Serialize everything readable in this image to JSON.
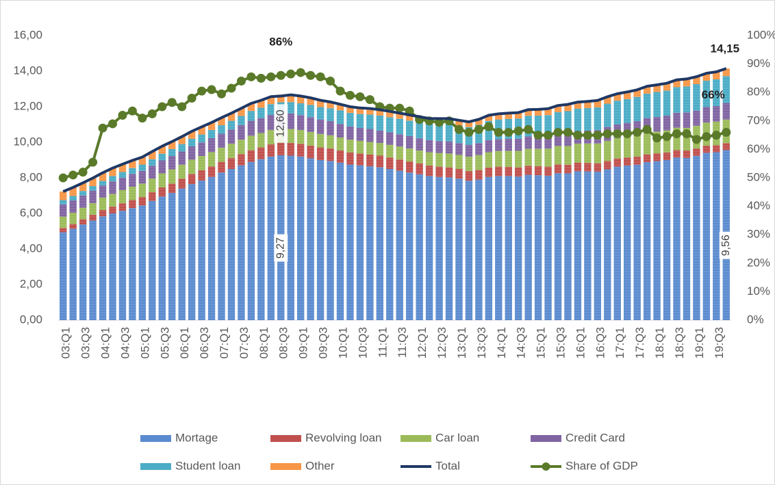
{
  "chart_data": {
    "type": "bar",
    "stacked": true,
    "grid": false,
    "categories": [
      "03:Q1",
      null,
      "03:Q3",
      null,
      "04:Q1",
      null,
      "04:Q3",
      null,
      "05:Q1",
      null,
      "05:Q3",
      null,
      "06:Q1",
      null,
      "06:Q3",
      null,
      "07:Q1",
      null,
      "07:Q3",
      null,
      "08:Q1",
      null,
      "08:Q3",
      null,
      "09:Q1",
      null,
      "09:Q3",
      null,
      "10:Q1",
      null,
      "10:Q3",
      null,
      "11:Q1",
      null,
      "11:Q3",
      null,
      "12:Q1",
      null,
      "12:Q3",
      null,
      "13:Q1",
      null,
      "13:Q3",
      null,
      "14:Q1",
      null,
      "14:Q3",
      null,
      "15:Q1",
      null,
      "15:Q3",
      null,
      "16:Q1",
      null,
      "16:Q3",
      null,
      "17:Q1",
      null,
      "17:Q3",
      null,
      "18:Q1",
      null,
      "18:Q3",
      null,
      "19:Q1",
      null,
      "19:Q3",
      null
    ],
    "ylim": [
      0,
      16
    ],
    "yticks": [
      {
        "value": 0,
        "label": "0,00"
      },
      {
        "value": 2,
        "label": "2,00"
      },
      {
        "value": 4,
        "label": "4,00"
      },
      {
        "value": 6,
        "label": "6,00"
      },
      {
        "value": 8,
        "label": "8,00"
      },
      {
        "value": 10,
        "label": "10,00"
      },
      {
        "value": 12,
        "label": "12,00"
      },
      {
        "value": 14,
        "label": "14,00"
      },
      {
        "value": 16,
        "label": "16,00"
      }
    ],
    "y2lim": [
      0,
      100
    ],
    "y2ticks": [
      {
        "value": 0,
        "label": "0%"
      },
      {
        "value": 10,
        "label": "10%"
      },
      {
        "value": 20,
        "label": "20%"
      },
      {
        "value": 30,
        "label": "30%"
      },
      {
        "value": 40,
        "label": "40%"
      },
      {
        "value": 50,
        "label": "50%"
      },
      {
        "value": 60,
        "label": "60%"
      },
      {
        "value": 70,
        "label": "70%"
      },
      {
        "value": 80,
        "label": "80%"
      },
      {
        "value": 90,
        "label": "90%"
      },
      {
        "value": 100,
        "label": "100%"
      }
    ],
    "series": [
      {
        "name": "Mortage",
        "type": "bar",
        "color": "#5b8bcf",
        "values": [
          4.94,
          5.14,
          5.38,
          5.6,
          5.84,
          6.0,
          6.15,
          6.3,
          6.45,
          6.7,
          6.95,
          7.15,
          7.4,
          7.65,
          7.85,
          8.05,
          8.3,
          8.5,
          8.7,
          8.9,
          9.05,
          9.2,
          9.27,
          9.25,
          9.2,
          9.1,
          9.0,
          8.95,
          8.85,
          8.75,
          8.7,
          8.65,
          8.6,
          8.5,
          8.4,
          8.3,
          8.2,
          8.1,
          8.05,
          8.03,
          7.95,
          7.84,
          7.9,
          8.05,
          8.1,
          8.1,
          8.07,
          8.17,
          8.15,
          8.12,
          8.26,
          8.25,
          8.37,
          8.36,
          8.35,
          8.48,
          8.63,
          8.69,
          8.74,
          8.88,
          8.94,
          9.0,
          9.14,
          9.12,
          9.24,
          9.41,
          9.44,
          9.56
        ],
        "value_labels": [
          null,
          null,
          null,
          null,
          null,
          null,
          null,
          null,
          null,
          null,
          null,
          null,
          null,
          null,
          null,
          null,
          null,
          null,
          null,
          null,
          null,
          null,
          "9,27",
          null,
          null,
          null,
          null,
          null,
          null,
          null,
          null,
          null,
          null,
          null,
          null,
          null,
          null,
          null,
          null,
          null,
          null,
          null,
          null,
          null,
          null,
          null,
          null,
          null,
          null,
          null,
          null,
          null,
          null,
          null,
          null,
          null,
          null,
          null,
          null,
          null,
          null,
          null,
          null,
          null,
          null,
          null,
          null,
          "9,56"
        ]
      },
      {
        "name": "Revolving loan",
        "type": "bar",
        "color": "#c0504d",
        "values": [
          0.24,
          0.26,
          0.29,
          0.32,
          0.35,
          0.38,
          0.42,
          0.45,
          0.47,
          0.49,
          0.51,
          0.53,
          0.55,
          0.57,
          0.58,
          0.59,
          0.6,
          0.61,
          0.63,
          0.65,
          0.66,
          0.68,
          0.7,
          0.71,
          0.71,
          0.71,
          0.71,
          0.7,
          0.69,
          0.68,
          0.67,
          0.66,
          0.65,
          0.64,
          0.63,
          0.62,
          0.61,
          0.59,
          0.58,
          0.56,
          0.55,
          0.54,
          0.54,
          0.53,
          0.53,
          0.52,
          0.52,
          0.51,
          0.51,
          0.51,
          0.5,
          0.49,
          0.49,
          0.48,
          0.47,
          0.47,
          0.46,
          0.45,
          0.45,
          0.44,
          0.44,
          0.43,
          0.42,
          0.42,
          0.41,
          0.4,
          0.4,
          0.39
        ]
      },
      {
        "name": "Car loan",
        "type": "bar",
        "color": "#9bbb59",
        "values": [
          0.64,
          0.64,
          0.65,
          0.66,
          0.7,
          0.72,
          0.74,
          0.75,
          0.76,
          0.77,
          0.79,
          0.8,
          0.79,
          0.8,
          0.8,
          0.81,
          0.8,
          0.81,
          0.82,
          0.82,
          0.81,
          0.81,
          0.8,
          0.79,
          0.78,
          0.77,
          0.76,
          0.74,
          0.73,
          0.72,
          0.71,
          0.71,
          0.71,
          0.72,
          0.73,
          0.73,
          0.73,
          0.75,
          0.77,
          0.78,
          0.79,
          0.81,
          0.84,
          0.86,
          0.88,
          0.9,
          0.93,
          0.95,
          0.97,
          1.01,
          1.03,
          1.05,
          1.06,
          1.09,
          1.11,
          1.13,
          1.15,
          1.17,
          1.19,
          1.21,
          1.22,
          1.24,
          1.26,
          1.27,
          1.28,
          1.3,
          1.32,
          1.33
        ]
      },
      {
        "name": "Credit Card",
        "type": "bar",
        "color": "#8064a2",
        "values": [
          0.69,
          0.69,
          0.69,
          0.7,
          0.68,
          0.7,
          0.7,
          0.72,
          0.71,
          0.72,
          0.73,
          0.75,
          0.74,
          0.75,
          0.76,
          0.78,
          0.78,
          0.8,
          0.82,
          0.84,
          0.84,
          0.85,
          0.86,
          0.87,
          0.84,
          0.83,
          0.81,
          0.8,
          0.76,
          0.74,
          0.73,
          0.73,
          0.7,
          0.7,
          0.69,
          0.7,
          0.68,
          0.68,
          0.67,
          0.68,
          0.66,
          0.67,
          0.67,
          0.68,
          0.66,
          0.67,
          0.68,
          0.7,
          0.68,
          0.7,
          0.71,
          0.73,
          0.71,
          0.73,
          0.75,
          0.78,
          0.76,
          0.78,
          0.81,
          0.83,
          0.82,
          0.83,
          0.84,
          0.87,
          0.85,
          0.87,
          0.88,
          0.93
        ]
      },
      {
        "name": "Student loan",
        "type": "bar",
        "color": "#4bacc6",
        "values": [
          0.24,
          0.25,
          0.25,
          0.26,
          0.26,
          0.3,
          0.32,
          0.33,
          0.36,
          0.37,
          0.38,
          0.39,
          0.42,
          0.43,
          0.45,
          0.46,
          0.48,
          0.49,
          0.51,
          0.55,
          0.58,
          0.61,
          0.62,
          0.64,
          0.66,
          0.69,
          0.7,
          0.72,
          0.76,
          0.76,
          0.78,
          0.81,
          0.84,
          0.85,
          0.87,
          0.87,
          0.9,
          0.91,
          0.96,
          0.97,
          0.99,
          0.99,
          1.03,
          1.08,
          1.11,
          1.12,
          1.13,
          1.16,
          1.19,
          1.19,
          1.2,
          1.23,
          1.26,
          1.26,
          1.28,
          1.31,
          1.34,
          1.34,
          1.36,
          1.38,
          1.41,
          1.41,
          1.44,
          1.46,
          1.49,
          1.48,
          1.5,
          1.51
        ]
      },
      {
        "name": "Other",
        "type": "bar",
        "color": "#f79646",
        "values": [
          0.48,
          0.48,
          0.46,
          0.45,
          0.46,
          0.45,
          0.44,
          0.43,
          0.42,
          0.43,
          0.42,
          0.42,
          0.42,
          0.42,
          0.43,
          0.42,
          0.42,
          0.43,
          0.43,
          0.43,
          0.42,
          0.42,
          0.43,
          0.41,
          0.41,
          0.4,
          0.38,
          0.36,
          0.35,
          0.35,
          0.34,
          0.34,
          0.33,
          0.33,
          0.32,
          0.32,
          0.32,
          0.31,
          0.3,
          0.31,
          0.3,
          0.3,
          0.31,
          0.32,
          0.32,
          0.33,
          0.34,
          0.35,
          0.35,
          0.36,
          0.37,
          0.38,
          0.37,
          0.38,
          0.39,
          0.39,
          0.39,
          0.4,
          0.4,
          0.41,
          0.4,
          0.41,
          0.41,
          0.42,
          0.42,
          0.42,
          0.42,
          0.43
        ]
      },
      {
        "name": "Total",
        "type": "line",
        "color": "#1f3864",
        "values": [
          7.23,
          7.46,
          7.72,
          7.99,
          8.29,
          8.55,
          8.77,
          8.98,
          9.17,
          9.48,
          9.78,
          10.04,
          10.32,
          10.62,
          10.87,
          11.11,
          11.38,
          11.64,
          11.91,
          12.19,
          12.36,
          12.57,
          12.6,
          12.67,
          12.6,
          12.5,
          12.36,
          12.27,
          12.14,
          12.0,
          11.93,
          11.9,
          11.83,
          11.74,
          11.64,
          11.54,
          11.44,
          11.34,
          11.33,
          11.33,
          11.24,
          11.15,
          11.29,
          11.52,
          11.6,
          11.64,
          11.67,
          11.84,
          11.85,
          11.89,
          12.07,
          12.13,
          12.26,
          12.3,
          12.35,
          12.56,
          12.73,
          12.83,
          12.95,
          13.15,
          13.23,
          13.32,
          13.51,
          13.56,
          13.69,
          13.88,
          13.96,
          14.15
        ],
        "value_labels": [
          null,
          null,
          null,
          null,
          null,
          null,
          null,
          null,
          null,
          null,
          null,
          null,
          null,
          null,
          null,
          null,
          null,
          null,
          null,
          null,
          null,
          null,
          "12,60",
          null,
          null,
          null,
          null,
          null,
          null,
          null,
          null,
          null,
          null,
          null,
          null,
          null,
          null,
          null,
          null,
          null,
          null,
          null,
          null,
          null,
          null,
          null,
          null,
          null,
          null,
          null,
          null,
          null,
          null,
          null,
          null,
          null,
          null,
          null,
          null,
          null,
          null,
          null,
          null,
          null,
          null,
          null,
          null,
          "14,15"
        ]
      },
      {
        "name": "Share of GDP",
        "type": "line",
        "markers": true,
        "axis": "y2",
        "color": "#5a7a2a",
        "values": [
          50,
          51,
          52,
          55.5,
          67.5,
          69,
          72,
          73.5,
          71,
          72.5,
          75,
          76.5,
          75,
          78,
          80.5,
          81,
          79.5,
          81.5,
          84,
          85.5,
          85,
          85.5,
          86,
          86.5,
          87,
          86,
          85.5,
          84,
          80.5,
          79,
          78.5,
          77.5,
          75,
          74.5,
          74.5,
          73.5,
          70.5,
          70,
          69.5,
          70,
          67,
          66,
          67,
          68,
          66,
          66,
          66.5,
          67,
          65,
          65,
          66,
          66,
          65,
          65,
          65,
          65.5,
          65.5,
          65.5,
          66,
          67,
          64,
          64.5,
          65.5,
          65.5,
          63.5,
          64.5,
          65,
          66
        ],
        "value_labels": [
          null,
          null,
          null,
          null,
          null,
          null,
          null,
          null,
          null,
          null,
          null,
          null,
          null,
          null,
          null,
          null,
          null,
          null,
          null,
          null,
          null,
          null,
          "86%",
          null,
          null,
          null,
          null,
          null,
          null,
          null,
          null,
          null,
          null,
          null,
          null,
          null,
          null,
          null,
          null,
          null,
          null,
          null,
          null,
          null,
          null,
          null,
          null,
          null,
          null,
          null,
          null,
          null,
          null,
          null,
          null,
          null,
          null,
          null,
          null,
          null,
          null,
          null,
          null,
          null,
          null,
          null,
          null,
          "66%"
        ]
      }
    ]
  }
}
